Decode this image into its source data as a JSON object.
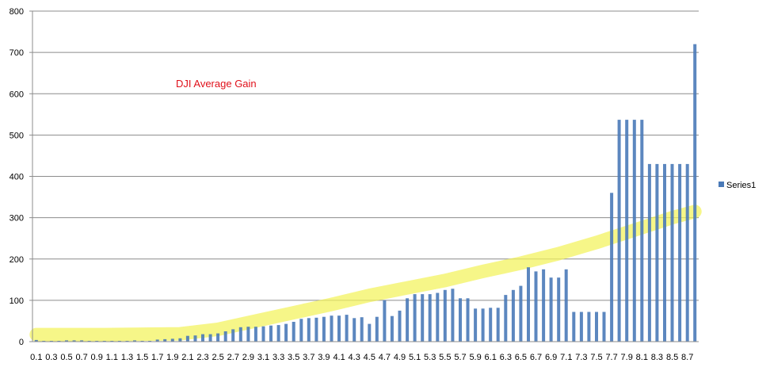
{
  "chart_data": {
    "type": "bar",
    "annotation": "DJI Average Gain",
    "xlabel": "",
    "ylabel": "",
    "ylim": [
      0,
      800
    ],
    "yticks": [
      0,
      100,
      200,
      300,
      400,
      500,
      600,
      700,
      800
    ],
    "grid": "horizontal",
    "legend_position": "right",
    "colors": {
      "bar": "#4a7ab8",
      "grid": "#8c8c8c",
      "trend_band": "#f2f25a",
      "annotation": "#e0101a"
    },
    "x": [
      0.1,
      0.2,
      0.3,
      0.4,
      0.5,
      0.6,
      0.7,
      0.8,
      0.9,
      1.0,
      1.1,
      1.2,
      1.3,
      1.4,
      1.5,
      1.6,
      1.7,
      1.8,
      1.9,
      2.0,
      2.1,
      2.2,
      2.3,
      2.4,
      2.5,
      2.6,
      2.7,
      2.8,
      2.9,
      3.0,
      3.1,
      3.2,
      3.3,
      3.4,
      3.5,
      3.6,
      3.7,
      3.8,
      3.9,
      4.0,
      4.1,
      4.2,
      4.3,
      4.4,
      4.5,
      4.6,
      4.7,
      4.8,
      4.9,
      5.0,
      5.1,
      5.2,
      5.3,
      5.4,
      5.5,
      5.6,
      5.7,
      5.8,
      5.9,
      6.0,
      6.1,
      6.2,
      6.3,
      6.4,
      6.5,
      6.6,
      6.7,
      6.8,
      6.9,
      7.0,
      7.1,
      7.2,
      7.3,
      7.4,
      7.5,
      7.6,
      7.7,
      7.8,
      7.9,
      8.0,
      8.1,
      8.2,
      8.3,
      8.4,
      8.5,
      8.6,
      8.7,
      8.8
    ],
    "x_tick_labels": [
      "0.1",
      "0.3",
      "0.5",
      "0.7",
      "0.9",
      "1.1",
      "1.3",
      "1.5",
      "1.7",
      "1.9",
      "2.1",
      "2.3",
      "2.5",
      "2.7",
      "2.9",
      "3.1",
      "3.3",
      "3.5",
      "3.7",
      "3.9",
      "4.1",
      "4.3",
      "4.5",
      "4.7",
      "4.9",
      "5.1",
      "5.3",
      "5.5",
      "5.7",
      "5.9",
      "6.1",
      "6.3",
      "6.5",
      "6.7",
      "6.9",
      "7.1",
      "7.3",
      "7.5",
      "7.7",
      "7.9",
      "8.1",
      "8.3",
      "8.5",
      "8.7"
    ],
    "series": [
      {
        "name": "Series1",
        "values": [
          4,
          2,
          2,
          2,
          3,
          3,
          3,
          2,
          2,
          2,
          2,
          2,
          2,
          3,
          2,
          2,
          5,
          6,
          7,
          8,
          14,
          15,
          18,
          18,
          20,
          25,
          30,
          35,
          36,
          36,
          37,
          39,
          40,
          43,
          48,
          55,
          57,
          58,
          60,
          63,
          63,
          65,
          57,
          59,
          43,
          60,
          100,
          62,
          75,
          105,
          115,
          115,
          115,
          118,
          125,
          128,
          105,
          105,
          80,
          80,
          82,
          82,
          113,
          125,
          135,
          180,
          170,
          175,
          155,
          155,
          175,
          72,
          72,
          72,
          72,
          72,
          360,
          537,
          537,
          537,
          537,
          430,
          430,
          430,
          430,
          430,
          430,
          720
        ]
      }
    ],
    "trend_band": {
      "x": [
        0.1,
        1.0,
        2.0,
        2.5,
        3.0,
        3.5,
        4.0,
        4.5,
        5.0,
        5.5,
        6.0,
        6.5,
        7.0,
        7.5,
        8.0,
        8.5,
        8.8
      ],
      "y": [
        17,
        17,
        19,
        30,
        50,
        70,
        90,
        112,
        130,
        148,
        170,
        190,
        213,
        240,
        270,
        300,
        315
      ]
    }
  }
}
